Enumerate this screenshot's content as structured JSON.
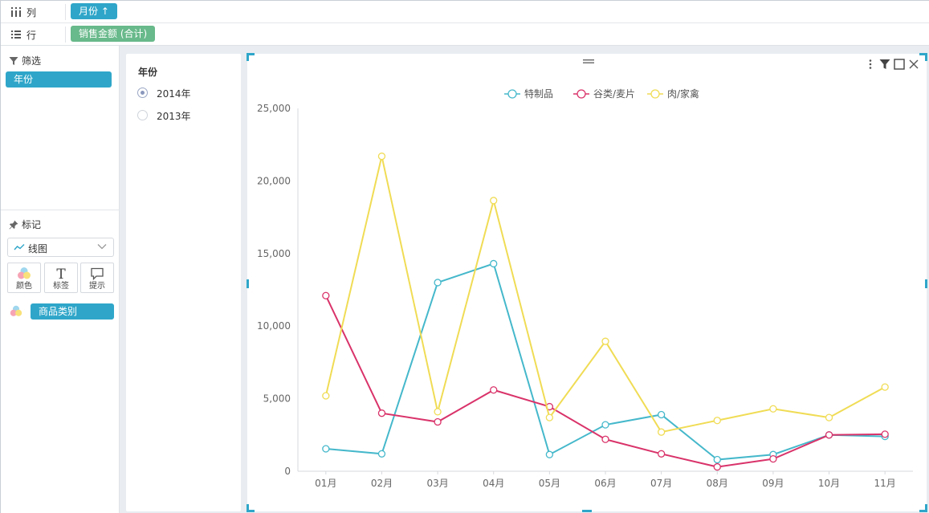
{
  "shelves": {
    "columns": {
      "label": "列",
      "pill": "月份 ↑"
    },
    "rows": {
      "label": "行",
      "pill": "销售金额 (合计)"
    }
  },
  "left_panel": {
    "filter_title": "筛选",
    "filter_pill": "年份",
    "marks_title": "标记",
    "mark_type": "线图",
    "mark_buttons": {
      "color": "颜色",
      "label": "标签",
      "tooltip": "提示"
    },
    "color_field": "商品类别"
  },
  "filter_widget": {
    "title": "年份",
    "options": [
      {
        "label": "2014年",
        "selected": true
      },
      {
        "label": "2013年",
        "selected": false
      }
    ]
  },
  "colors": {
    "accent": "#2fa6c9",
    "row_pill": "#68b98b",
    "series": [
      "#45b8cb",
      "#d9336a",
      "#f0dc55"
    ]
  },
  "chart_data": {
    "type": "line",
    "categories": [
      "01月",
      "02月",
      "03月",
      "04月",
      "05月",
      "06月",
      "07月",
      "08月",
      "09月",
      "10月",
      "11月"
    ],
    "series": [
      {
        "name": "特制品",
        "values": [
          1550,
          1200,
          13000,
          14300,
          1150,
          3200,
          3900,
          800,
          1150,
          2500,
          2400
        ]
      },
      {
        "name": "谷类/麦片",
        "values": [
          12100,
          4000,
          3400,
          5600,
          4450,
          2200,
          1200,
          300,
          850,
          2500,
          2550
        ]
      },
      {
        "name": "肉/家禽",
        "values": [
          5200,
          21700,
          4100,
          18650,
          3700,
          8950,
          2700,
          3500,
          4300,
          3700,
          5800
        ]
      }
    ],
    "ylim": [
      0,
      25000
    ],
    "yticks": [
      "0",
      "5,000",
      "10,000",
      "15,000",
      "20,000",
      "25,000"
    ],
    "legend_position": "top-center",
    "grid": false,
    "markers": "hollow-circle"
  }
}
